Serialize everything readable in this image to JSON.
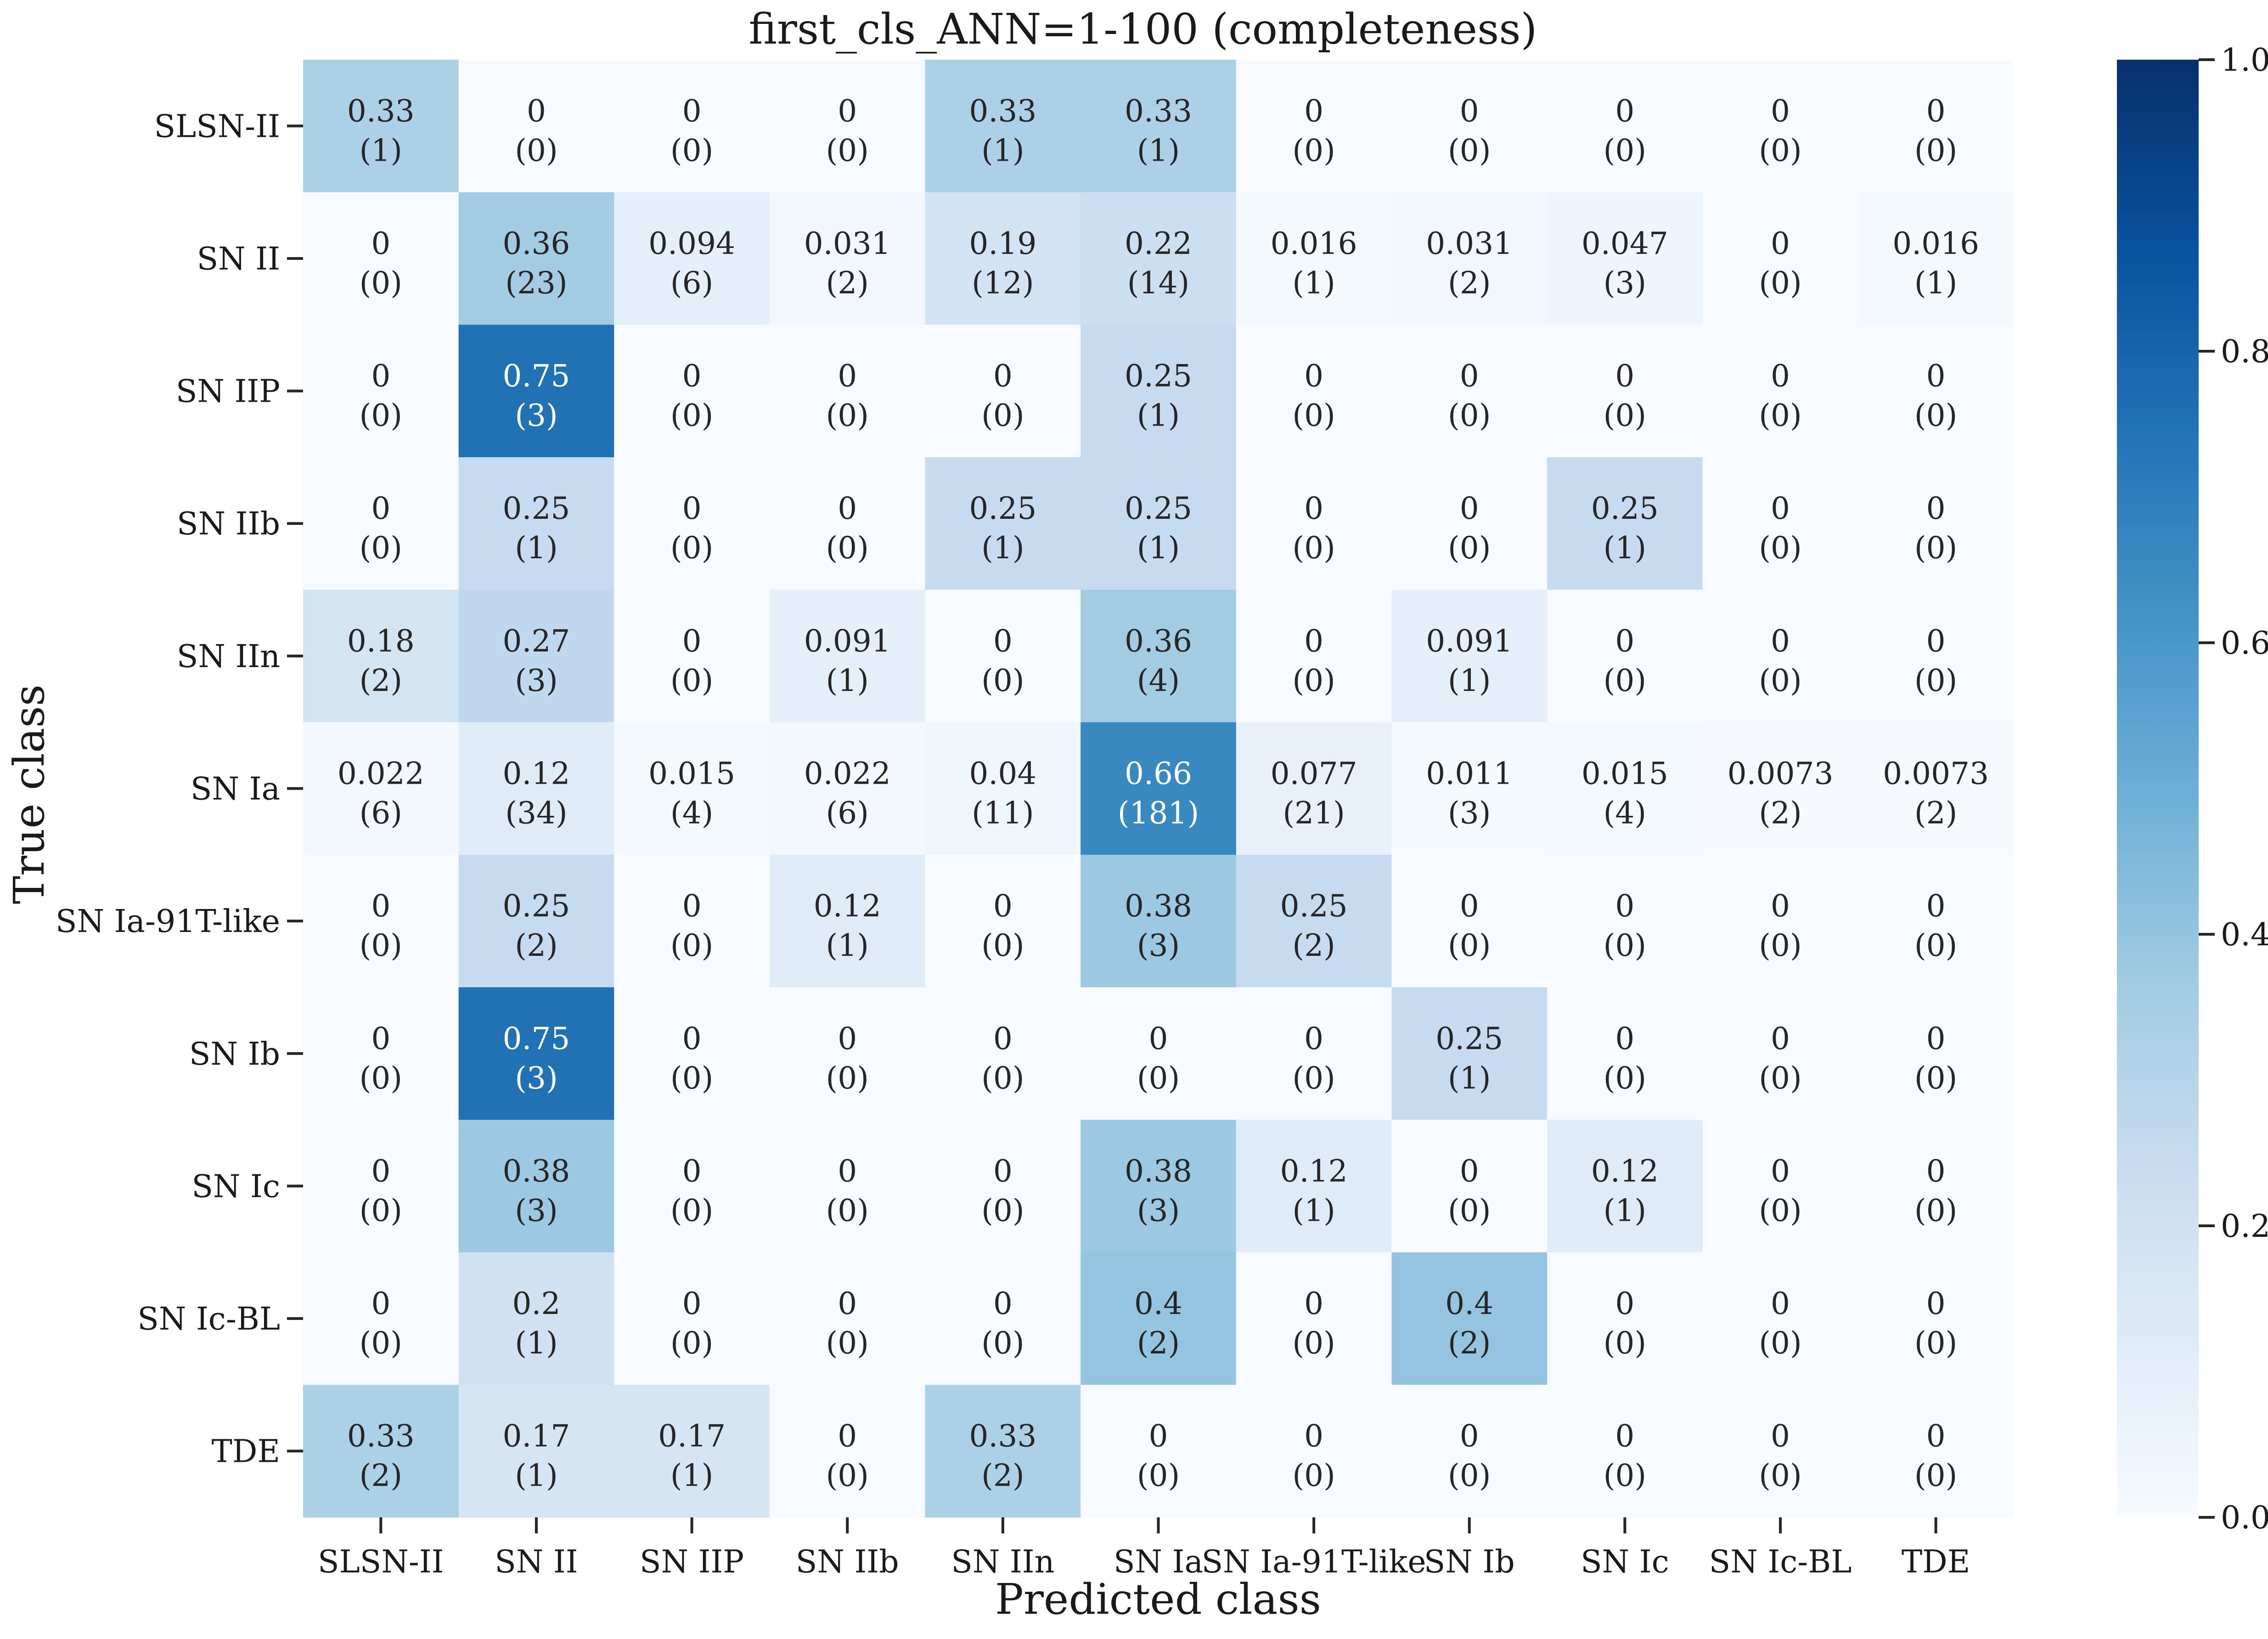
{
  "chart_data": {
    "type": "heatmap",
    "title": "first_cls_ANN=1-100 (completeness)",
    "xlabel": "Predicted class",
    "ylabel": "True class",
    "categories": [
      "SLSN-II",
      "SN II",
      "SN IIP",
      "SN IIb",
      "SN IIn",
      "SN Ia",
      "SN Ia-91T-like",
      "SN Ib",
      "SN Ic",
      "SN Ic-BL",
      "TDE"
    ],
    "values": [
      [
        "0.33",
        "0",
        "0",
        "0",
        "0.33",
        "0.33",
        "0",
        "0",
        "0",
        "0",
        "0"
      ],
      [
        "0",
        "0.36",
        "0.094",
        "0.031",
        "0.19",
        "0.22",
        "0.016",
        "0.031",
        "0.047",
        "0",
        "0.016"
      ],
      [
        "0",
        "0.75",
        "0",
        "0",
        "0",
        "0.25",
        "0",
        "0",
        "0",
        "0",
        "0"
      ],
      [
        "0",
        "0.25",
        "0",
        "0",
        "0.25",
        "0.25",
        "0",
        "0",
        "0.25",
        "0",
        "0"
      ],
      [
        "0.18",
        "0.27",
        "0",
        "0.091",
        "0",
        "0.36",
        "0",
        "0.091",
        "0",
        "0",
        "0"
      ],
      [
        "0.022",
        "0.12",
        "0.015",
        "0.022",
        "0.04",
        "0.66",
        "0.077",
        "0.011",
        "0.015",
        "0.0073",
        "0.0073"
      ],
      [
        "0",
        "0.25",
        "0",
        "0.12",
        "0",
        "0.38",
        "0.25",
        "0",
        "0",
        "0",
        "0"
      ],
      [
        "0",
        "0.75",
        "0",
        "0",
        "0",
        "0",
        "0",
        "0.25",
        "0",
        "0",
        "0"
      ],
      [
        "0",
        "0.38",
        "0",
        "0",
        "0",
        "0.38",
        "0.12",
        "0",
        "0.12",
        "0",
        "0"
      ],
      [
        "0",
        "0.2",
        "0",
        "0",
        "0",
        "0.4",
        "0",
        "0.4",
        "0",
        "0",
        "0"
      ],
      [
        "0.33",
        "0.17",
        "0.17",
        "0",
        "0.33",
        "0",
        "0",
        "0",
        "0",
        "0",
        "0"
      ]
    ],
    "counts": [
      [
        "(1)",
        "(0)",
        "(0)",
        "(0)",
        "(1)",
        "(1)",
        "(0)",
        "(0)",
        "(0)",
        "(0)",
        "(0)"
      ],
      [
        "(0)",
        "(23)",
        "(6)",
        "(2)",
        "(12)",
        "(14)",
        "(1)",
        "(2)",
        "(3)",
        "(0)",
        "(1)"
      ],
      [
        "(0)",
        "(3)",
        "(0)",
        "(0)",
        "(0)",
        "(1)",
        "(0)",
        "(0)",
        "(0)",
        "(0)",
        "(0)"
      ],
      [
        "(0)",
        "(1)",
        "(0)",
        "(0)",
        "(1)",
        "(1)",
        "(0)",
        "(0)",
        "(1)",
        "(0)",
        "(0)"
      ],
      [
        "(2)",
        "(3)",
        "(0)",
        "(1)",
        "(0)",
        "(4)",
        "(0)",
        "(1)",
        "(0)",
        "(0)",
        "(0)"
      ],
      [
        "(6)",
        "(34)",
        "(4)",
        "(6)",
        "(11)",
        "(181)",
        "(21)",
        "(3)",
        "(4)",
        "(2)",
        "(2)"
      ],
      [
        "(0)",
        "(2)",
        "(0)",
        "(1)",
        "(0)",
        "(3)",
        "(2)",
        "(0)",
        "(0)",
        "(0)",
        "(0)"
      ],
      [
        "(0)",
        "(3)",
        "(0)",
        "(0)",
        "(0)",
        "(0)",
        "(0)",
        "(1)",
        "(0)",
        "(0)",
        "(0)"
      ],
      [
        "(0)",
        "(3)",
        "(0)",
        "(0)",
        "(0)",
        "(3)",
        "(1)",
        "(0)",
        "(1)",
        "(0)",
        "(0)"
      ],
      [
        "(0)",
        "(1)",
        "(0)",
        "(0)",
        "(0)",
        "(2)",
        "(0)",
        "(2)",
        "(0)",
        "(0)",
        "(0)"
      ],
      [
        "(2)",
        "(1)",
        "(1)",
        "(0)",
        "(2)",
        "(0)",
        "(0)",
        "(0)",
        "(0)",
        "(0)",
        "(0)"
      ]
    ],
    "colorbar": {
      "range": [
        0,
        1
      ],
      "ticks": [
        "0.0",
        "0.2",
        "0.4",
        "0.6",
        "0.8",
        "1.0"
      ],
      "colormap": "Blues",
      "colors": [
        "#f7fbff",
        "#deebf7",
        "#c6dbef",
        "#9ecae1",
        "#6baed6",
        "#4292c6",
        "#2171b5",
        "#08519c",
        "#08306b"
      ]
    },
    "legend": "none",
    "grid": false
  }
}
